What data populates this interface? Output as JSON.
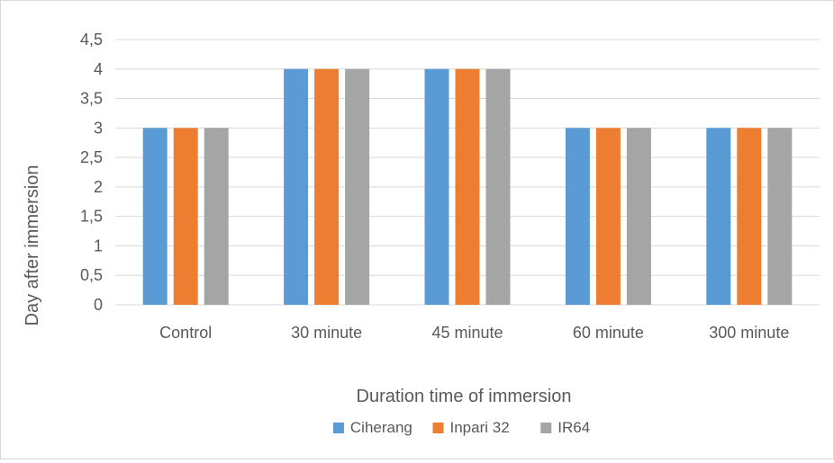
{
  "chart_data": {
    "type": "bar",
    "title": "",
    "xlabel": "Duration time of immersion",
    "ylabel": "Day after immersion",
    "categories": [
      "Control",
      "30 minute",
      "45 minute",
      "60 minute",
      "300 minute"
    ],
    "series": [
      {
        "name": "Ciherang",
        "values": [
          3,
          4,
          4,
          3,
          3
        ],
        "color": "#5b9bd5"
      },
      {
        "name": "Inpari 32",
        "values": [
          3,
          4,
          4,
          3,
          3
        ],
        "color": "#ed7d31"
      },
      {
        "name": "IR64",
        "values": [
          3,
          4,
          4,
          3,
          3
        ],
        "color": "#a5a5a5"
      }
    ],
    "ylim": [
      0,
      4.5
    ],
    "yticks": [
      "0",
      "0,5",
      "1",
      "1,5",
      "2",
      "2,5",
      "3",
      "3,5",
      "4",
      "4,5"
    ],
    "grid": true,
    "legend_position": "bottom"
  }
}
